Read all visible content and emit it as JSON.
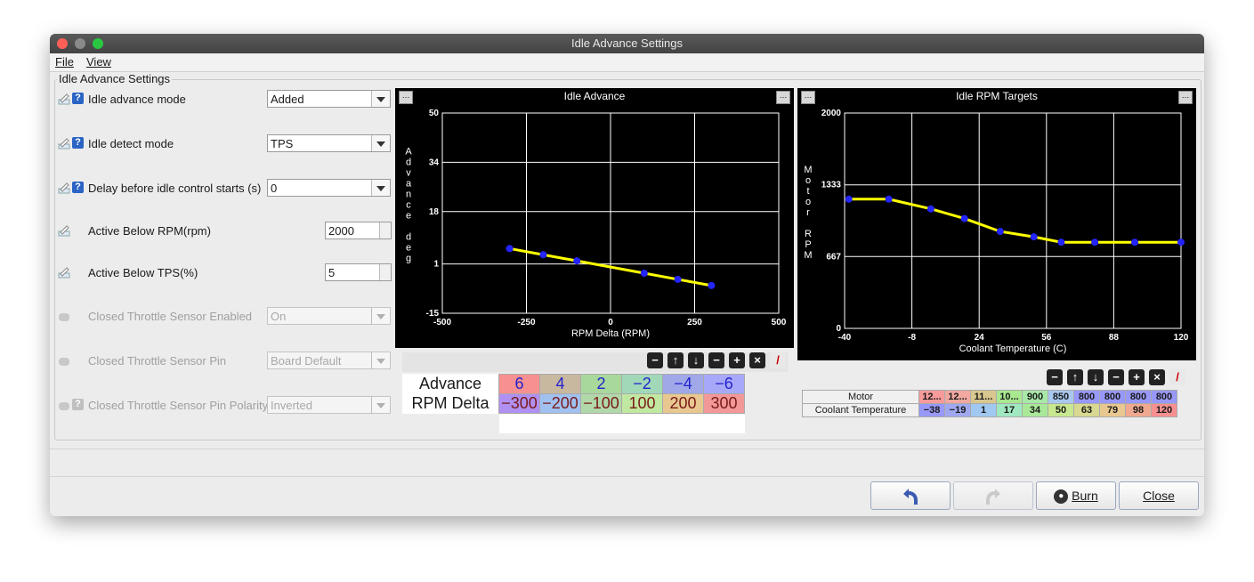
{
  "window": {
    "title": "Idle Advance Settings"
  },
  "menu": {
    "file": "File",
    "view": "View"
  },
  "group_title": "Idle Advance Settings",
  "settings": [
    {
      "label": "Idle advance mode",
      "value": "Added"
    },
    {
      "label": "Idle detect mode",
      "value": "TPS"
    },
    {
      "label": "Delay before idle control starts (s)",
      "value": "0"
    },
    {
      "label": "Active Below RPM(rpm)",
      "value": "2000"
    },
    {
      "label": "Active Below TPS(%)",
      "value": "5"
    },
    {
      "label": "Closed Throttle Sensor Enabled",
      "value": "On"
    },
    {
      "label": "Closed Throttle Sensor Pin",
      "value": "Board Default"
    },
    {
      "label": "Closed Throttle Sensor Pin Polarity",
      "value": "Inverted"
    }
  ],
  "chart_data": [
    {
      "type": "line",
      "title": "Idle Advance",
      "xlabel": "RPM Delta (RPM)",
      "ylabel": "Advance deg",
      "x": [
        -300,
        -200,
        -100,
        100,
        200,
        300
      ],
      "y": [
        6,
        4,
        2,
        -2,
        -4,
        -6
      ],
      "xlim": [
        -500,
        500
      ],
      "ylim": [
        -15,
        50
      ],
      "xticks": [
        "-500",
        "-250",
        "0",
        "250",
        "500"
      ],
      "yticks": [
        "-15",
        "1",
        "18",
        "34",
        "50"
      ],
      "line_color": "#ffff00",
      "point_color": "#2424ff",
      "grid": true
    },
    {
      "type": "line",
      "title": "Idle RPM Targets",
      "xlabel": "Coolant Temperature (C)",
      "ylabel": "Motor RPM",
      "x": [
        -38,
        -19,
        1,
        17,
        34,
        50,
        63,
        79,
        98,
        120
      ],
      "y": [
        1200,
        1200,
        1110,
        1020,
        900,
        850,
        800,
        800,
        800,
        800
      ],
      "xlim": [
        -40,
        120
      ],
      "ylim": [
        0,
        2000
      ],
      "xticks": [
        "-40",
        "-8",
        "24",
        "56",
        "88",
        "120"
      ],
      "yticks": [
        "0",
        "667",
        "1333",
        "2000"
      ],
      "line_color": "#ffff00",
      "point_color": "#2424ff",
      "grid": true
    }
  ],
  "advance_table": {
    "row1_label": "Advance",
    "row2_label": "RPM Delta",
    "advance": [
      "6",
      "4",
      "2",
      "−2",
      "−4",
      "−6"
    ],
    "rpm_delta": [
      "−300",
      "−200",
      "−100",
      "100",
      "200",
      "300"
    ],
    "colors": [
      "#f79090",
      "#c9b8a0",
      "#a8d89a",
      "#a0d8b8",
      "#a0a8e8",
      "#a8a8f8"
    ],
    "rpm_colors": [
      "#b090f0",
      "#a0c0f0",
      "#b0d8a8",
      "#c0e8a0",
      "#e8c890",
      "#f39898"
    ]
  },
  "rpm_table": {
    "row1_label": "Motor",
    "row2_label": "Coolant Temperature",
    "motor": [
      "12...",
      "12...",
      "11...",
      "10...",
      "900",
      "850",
      "800",
      "800",
      "800",
      "800"
    ],
    "coolant": [
      "−38",
      "−19",
      "1",
      "17",
      "34",
      "50",
      "63",
      "79",
      "98",
      "120"
    ],
    "motor_colors": [
      "#f79a9a",
      "#f0a8a0",
      "#d8c890",
      "#a8e890",
      "#a8e8a8",
      "#a8c8f0",
      "#9898f8",
      "#9898f8",
      "#9898f8",
      "#9898f8"
    ],
    "coolant_colors": [
      "#9898f8",
      "#a0a8f0",
      "#a0c8f0",
      "#a0e8c0",
      "#a8e898",
      "#c8e890",
      "#d8d890",
      "#e8c890",
      "#f0a890",
      "#f79090"
    ]
  },
  "buttons": {
    "burn": "Burn",
    "close": "Close"
  }
}
